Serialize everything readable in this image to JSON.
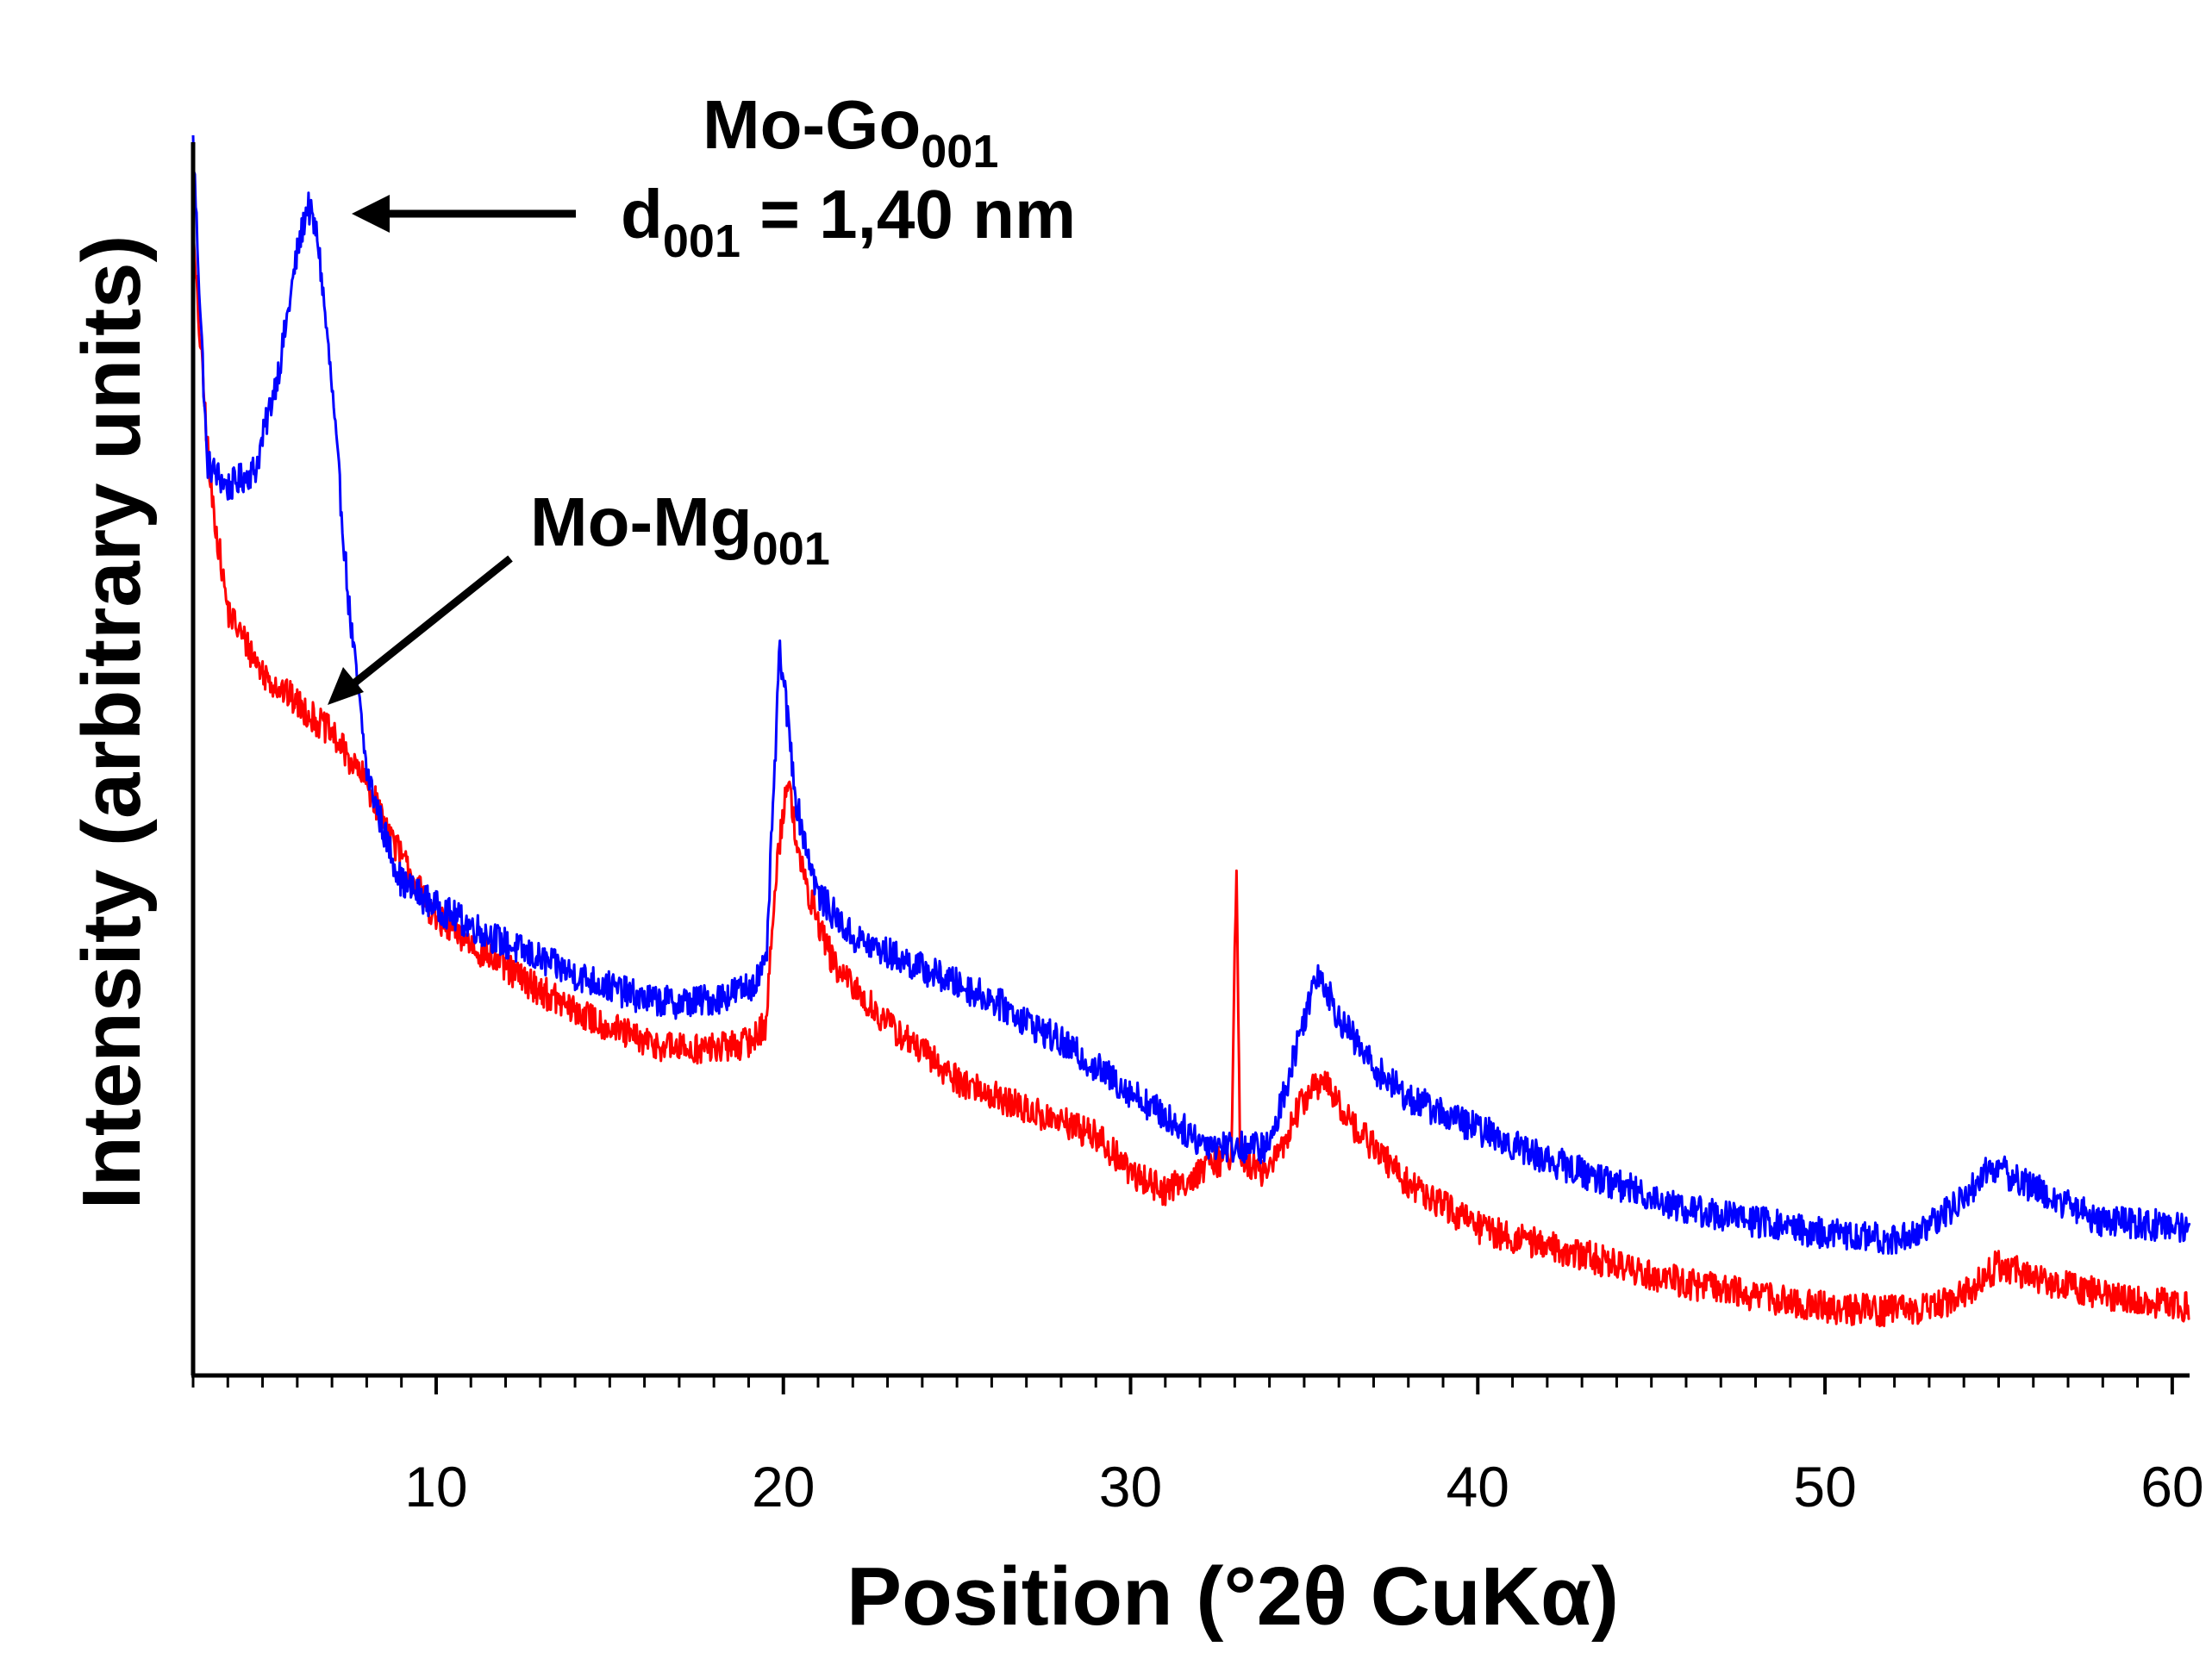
{
  "chart_data": {
    "type": "line",
    "title": "",
    "xlabel": "Position (°2θ CuKα)",
    "ylabel": "Intensity (arbitrary units)",
    "xlim": [
      3,
      60.5
    ],
    "ylim": [
      0,
      100
    ],
    "x_ticks": [
      10,
      20,
      30,
      40,
      50,
      60
    ],
    "x_tick_labels": [
      "10",
      "20",
      "30",
      "40",
      "50",
      "60"
    ],
    "y_ticks_labeled": false,
    "legend": "none",
    "grid": false,
    "series": [
      {
        "name": "Mo-Go",
        "color": "#0000ff",
        "x": [
          3.0,
          3.4,
          4.0,
          4.8,
          5.5,
          6.0,
          6.3,
          6.6,
          7.0,
          7.5,
          8.0,
          8.5,
          9.0,
          10,
          12,
          14,
          16,
          17,
          18,
          19,
          19.5,
          19.9,
          20.4,
          21,
          22,
          24,
          26,
          28,
          30,
          32,
          33,
          34,
          35,
          35.4,
          36,
          37,
          38,
          40,
          42,
          44,
          46,
          48,
          50,
          52,
          53,
          54,
          54.8,
          55.5,
          56.5,
          58,
          60.5
        ],
        "values": [
          100,
          74,
          72,
          73.5,
          82,
          91,
          95,
          92,
          80,
          62,
          49,
          44,
          40,
          38,
          35,
          32.5,
          30.5,
          30.2,
          30.5,
          31.5,
          33,
          59,
          46,
          39,
          35.5,
          33,
          30.5,
          27,
          23,
          19,
          18.5,
          18.5,
          29,
          33,
          29,
          25,
          22.5,
          20,
          17.5,
          15.5,
          13.5,
          12.5,
          11.5,
          11,
          12,
          14.5,
          17,
          16,
          14.5,
          12.5,
          12
        ]
      },
      {
        "name": "Mo-Mg",
        "color": "#ff0000",
        "x": [
          3.0,
          3.5,
          4.0,
          5.0,
          6.0,
          7.0,
          8.0,
          9.0,
          10,
          12,
          14,
          16,
          17,
          18,
          19,
          19.5,
          19.8,
          20.1,
          20.6,
          21.5,
          23,
          25,
          27,
          29,
          30,
          31,
          32,
          32.9,
          33.05,
          33.15,
          33.3,
          34,
          35,
          35.5,
          36.5,
          38,
          40,
          42,
          44,
          46,
          48,
          50,
          52,
          53,
          54,
          55,
          56,
          58,
          60.5
        ],
        "values": [
          92,
          72,
          62,
          57,
          54.5,
          52,
          48,
          42,
          37,
          33,
          29.5,
          27,
          26.5,
          26.5,
          27,
          28.5,
          41,
          48.5,
          40,
          33,
          28.5,
          24,
          21.5,
          19.5,
          16.5,
          15,
          16.5,
          18,
          42,
          18,
          17,
          16.5,
          22.5,
          24,
          20,
          15.5,
          12,
          10.5,
          9,
          7.5,
          6.5,
          5.5,
          5.2,
          5.5,
          6.5,
          9,
          8,
          6.5,
          5.5
        ]
      }
    ],
    "annotations": [
      {
        "text": "Mo-Go",
        "subscript": "001",
        "target_x": 6.4,
        "target_series": "Mo-Go"
      },
      {
        "text": "d",
        "subscript": "001",
        "suffix": " = 1,40 nm"
      },
      {
        "text": "Mo-Mg",
        "subscript": "001",
        "target_x": 7.0,
        "target_series": "Mo-Mg"
      }
    ]
  }
}
